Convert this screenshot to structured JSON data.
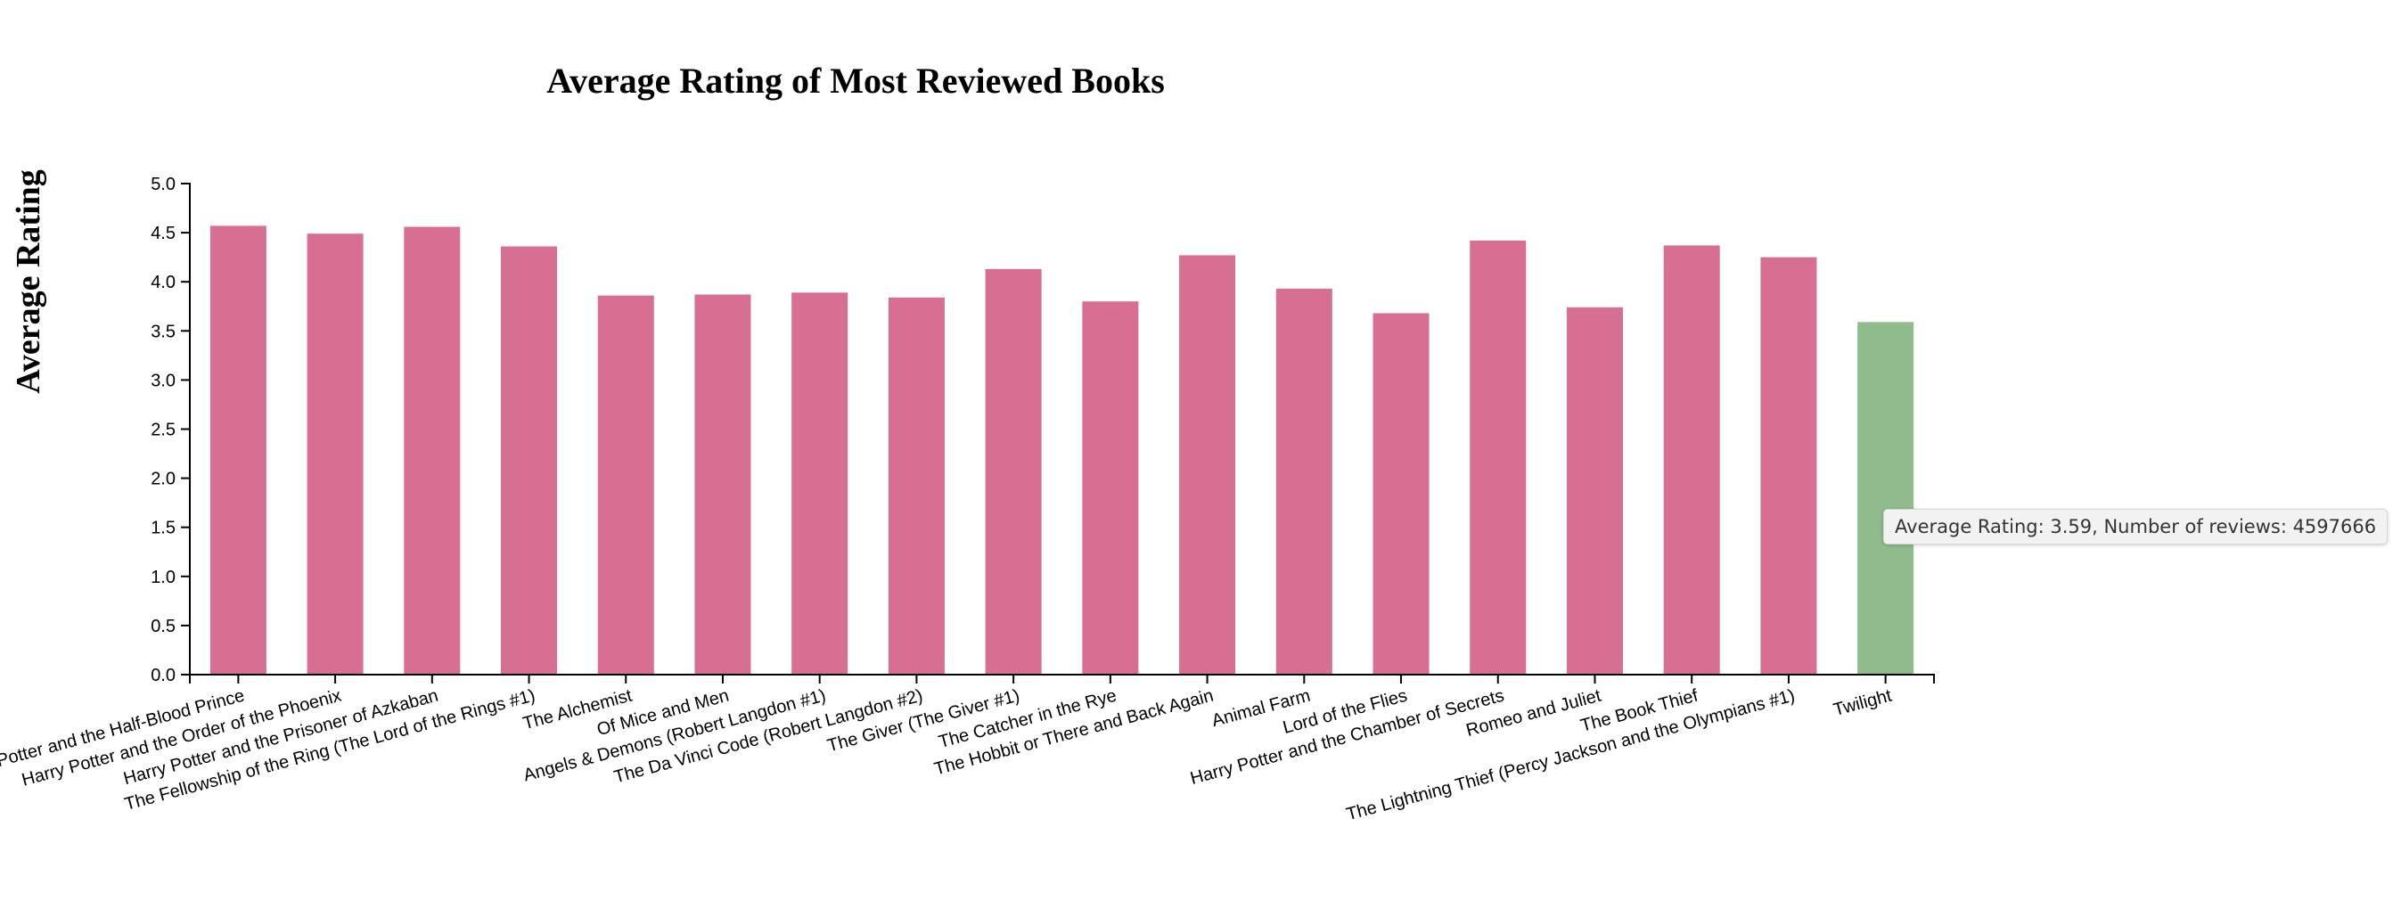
{
  "chart_data": {
    "type": "bar",
    "title": "Average Rating of Most Reviewed Books",
    "xlabel": "",
    "ylabel": "Average Rating",
    "ylim": [
      0,
      5
    ],
    "yticks": [
      "0.0",
      "0.5",
      "1.0",
      "1.5",
      "2.0",
      "2.5",
      "3.0",
      "3.5",
      "4.0",
      "4.5",
      "5.0"
    ],
    "categories": [
      "Harry Potter and the Half-Blood Prince",
      "Harry Potter and the Order of the Phoenix",
      "Harry Potter and the Prisoner of Azkaban",
      "The Fellowship of the Ring (The Lord of the Rings #1)",
      "The Alchemist",
      "Of Mice and Men",
      "Angels & Demons (Robert Langdon #1)",
      "The Da Vinci Code (Robert Langdon #2)",
      "The Giver (The Giver #1)",
      "The Catcher in the Rye",
      "The Hobbit or There and Back Again",
      "Animal Farm",
      "Lord of the Flies",
      "Harry Potter and the Chamber of Secrets",
      "Romeo and Juliet",
      "The Book Thief",
      "The Lightning Thief (Percy Jackson and the Olympians #1)",
      "Twilight"
    ],
    "values": [
      4.57,
      4.49,
      4.56,
      4.36,
      3.86,
      3.87,
      3.89,
      3.84,
      4.13,
      3.8,
      4.27,
      3.93,
      3.68,
      4.42,
      3.74,
      4.37,
      4.25,
      3.59
    ],
    "highlighted_index": 17,
    "bar_color": "#d76f92",
    "highlight_color": "#8fbb8d",
    "grid": false
  },
  "tooltip": {
    "text": "Average Rating: 3.59, Number of reviews: 4597666"
  }
}
